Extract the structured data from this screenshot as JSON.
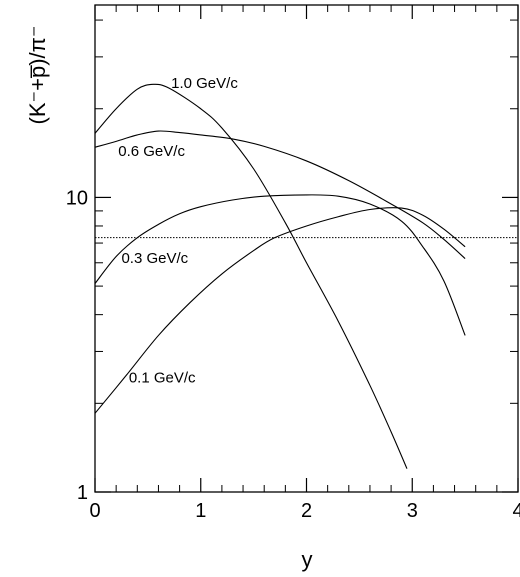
{
  "chart_data": {
    "type": "line",
    "title": "",
    "xlabel": "y",
    "ylabel": "(K⁻+p̅)/π⁻",
    "xlim": [
      0,
      4
    ],
    "ylim": [
      1,
      45
    ],
    "yscale": "log",
    "x_ticks": [
      {
        "value": 0,
        "label": "0"
      },
      {
        "value": 1,
        "label": "1"
      },
      {
        "value": 2,
        "label": "2"
      },
      {
        "value": 3,
        "label": "3"
      },
      {
        "value": 4,
        "label": "4"
      }
    ],
    "y_ticks": [
      {
        "value": 1,
        "label": "1"
      },
      {
        "value": 10,
        "label": "10"
      }
    ],
    "reference_line": {
      "y": 7.3,
      "style": "dotted"
    },
    "series": [
      {
        "name": "1.0 GeV/c",
        "label_x": 0.72,
        "label_y": 23.5,
        "points": [
          [
            0,
            16.5
          ],
          [
            0.2,
            20
          ],
          [
            0.4,
            23.3
          ],
          [
            0.55,
            24.2
          ],
          [
            0.7,
            23.5
          ],
          [
            1.0,
            20
          ],
          [
            1.2,
            17.2
          ],
          [
            1.5,
            12.5
          ],
          [
            1.8,
            8.2
          ],
          [
            2.0,
            6.0
          ],
          [
            2.3,
            3.8
          ],
          [
            2.6,
            2.3
          ],
          [
            2.8,
            1.6
          ],
          [
            2.95,
            1.2
          ]
        ]
      },
      {
        "name": "0.6 GeV/c",
        "label_x": 0.22,
        "label_y": 13.8,
        "points": [
          [
            0,
            14.8
          ],
          [
            0.2,
            15.5
          ],
          [
            0.4,
            16.3
          ],
          [
            0.6,
            16.8
          ],
          [
            0.8,
            16.6
          ],
          [
            1.0,
            16.3
          ],
          [
            1.3,
            15.8
          ],
          [
            1.6,
            14.9
          ],
          [
            2.0,
            13.3
          ],
          [
            2.4,
            11.4
          ],
          [
            2.8,
            9.5
          ],
          [
            3.1,
            8.2
          ],
          [
            3.3,
            7.2
          ],
          [
            3.5,
            6.2
          ]
        ]
      },
      {
        "name": "0.3 GeV/c",
        "label_x": 0.25,
        "label_y": 6.0,
        "points": [
          [
            0,
            5.1
          ],
          [
            0.2,
            6.3
          ],
          [
            0.4,
            7.3
          ],
          [
            0.6,
            8.1
          ],
          [
            0.8,
            8.8
          ],
          [
            1.0,
            9.3
          ],
          [
            1.3,
            9.8
          ],
          [
            1.6,
            10.1
          ],
          [
            2.0,
            10.2
          ],
          [
            2.3,
            10.1
          ],
          [
            2.6,
            9.5
          ],
          [
            2.9,
            8.3
          ],
          [
            3.1,
            6.8
          ],
          [
            3.3,
            5.2
          ],
          [
            3.5,
            3.4
          ]
        ]
      },
      {
        "name": "0.1 GeV/c",
        "label_x": 0.32,
        "label_y": 2.35,
        "points": [
          [
            0,
            1.85
          ],
          [
            0.3,
            2.5
          ],
          [
            0.6,
            3.4
          ],
          [
            0.9,
            4.4
          ],
          [
            1.2,
            5.5
          ],
          [
            1.5,
            6.6
          ],
          [
            1.7,
            7.3
          ],
          [
            2.0,
            8.0
          ],
          [
            2.3,
            8.6
          ],
          [
            2.6,
            9.1
          ],
          [
            2.9,
            9.2
          ],
          [
            3.1,
            8.7
          ],
          [
            3.3,
            7.8
          ],
          [
            3.5,
            6.8
          ]
        ]
      }
    ]
  }
}
